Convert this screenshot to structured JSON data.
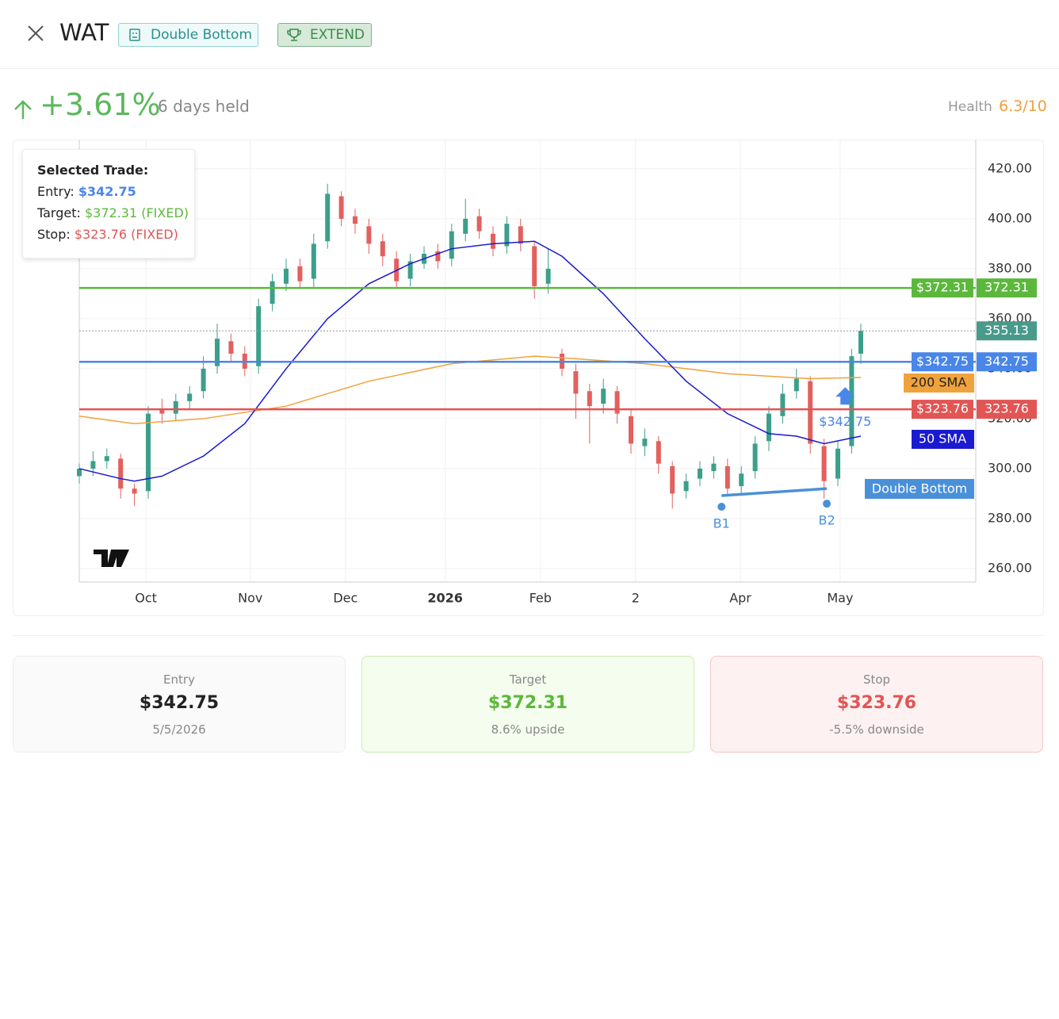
{
  "header": {
    "symbol": "WAT",
    "pattern": "Double Bottom",
    "action": "EXTEND"
  },
  "performance": {
    "change": "+3.61%",
    "held": "6 days held",
    "health_label": "Health",
    "health": "6.3/10"
  },
  "tooltip": {
    "title": "Selected Trade:",
    "entry_label": "Entry:",
    "entry": "$342.75",
    "target_label": "Target:",
    "target": "$372.31 (FIXED)",
    "stop_label": "Stop:",
    "stop": "$323.76 (FIXED)"
  },
  "chart_data": {
    "type": "candlestick",
    "xlim": [
      0,
      195
    ],
    "ylim": [
      254.6,
      431.7
    ],
    "xticks": [
      {
        "value": 14.5,
        "label": "Oct"
      },
      {
        "value": 37.2,
        "label": "Nov"
      },
      {
        "value": 57.9,
        "label": "Dec"
      },
      {
        "value": 79.6,
        "label": "2026"
      },
      {
        "value": 100.3,
        "label": "Feb"
      },
      {
        "value": 121,
        "label": "2"
      },
      {
        "value": 143.8,
        "label": "Apr"
      },
      {
        "value": 165.5,
        "label": "May"
      }
    ],
    "yticks": [
      {
        "value": 260,
        "label": "260.00"
      },
      {
        "value": 280,
        "label": "280.00"
      },
      {
        "value": 300,
        "label": "300.00"
      },
      {
        "value": 320,
        "label": "320.00"
      },
      {
        "value": 340,
        "label": "340.00"
      },
      {
        "value": 360,
        "label": "360.00"
      },
      {
        "value": 380,
        "label": "380.00"
      },
      {
        "value": 400,
        "label": "400.00"
      },
      {
        "value": 420,
        "label": "420.00"
      }
    ],
    "grid": true,
    "up_color": "#3c9f8a",
    "down_color": "#e2605e",
    "x": [
      0,
      3,
      6,
      9,
      12,
      15,
      18,
      21,
      24,
      27,
      30,
      33,
      36,
      39,
      42,
      45,
      48,
      51,
      54,
      57,
      60,
      63,
      66,
      69,
      72,
      75,
      78,
      81,
      84,
      87,
      90,
      93,
      96,
      99,
      102,
      105,
      108,
      111,
      114,
      117,
      120,
      123,
      126,
      129,
      132,
      135,
      138,
      141,
      144,
      147,
      150,
      153,
      156,
      159,
      162,
      165,
      168,
      170
    ],
    "open": [
      297,
      300,
      303,
      304,
      292,
      291,
      324,
      322,
      327,
      331,
      341,
      351,
      346,
      341,
      366,
      374,
      381,
      376,
      391,
      409,
      401,
      397,
      391,
      384,
      376,
      382,
      387,
      384,
      394,
      401,
      394,
      389,
      397,
      389,
      374,
      346,
      339,
      331,
      326,
      331,
      321,
      309,
      311,
      301,
      291,
      296,
      299,
      301,
      293,
      299,
      311,
      321,
      331,
      335,
      309,
      296,
      309,
      346
    ],
    "high": [
      302,
      307,
      308,
      306,
      294,
      325,
      328,
      330,
      333,
      345,
      358,
      354,
      349,
      368,
      378,
      384,
      384,
      394,
      414,
      411,
      404,
      400,
      394,
      387,
      386,
      389,
      390,
      398,
      408,
      404,
      397,
      401,
      400,
      391,
      388,
      348,
      342,
      334,
      336,
      333,
      324,
      316,
      313,
      303,
      298,
      303,
      305,
      304,
      301,
      313,
      325,
      334,
      340,
      337,
      312,
      311,
      348,
      358
    ],
    "low": [
      294,
      297,
      300,
      288,
      285,
      288,
      318,
      319,
      324,
      328,
      338,
      343,
      337,
      338,
      363,
      371,
      372,
      372,
      388,
      397,
      394,
      386,
      381,
      372,
      373,
      380,
      380,
      381,
      391,
      392,
      385,
      386,
      387,
      368,
      370,
      337,
      320,
      310,
      322,
      318,
      306,
      305,
      298,
      284,
      288,
      293,
      296,
      289,
      290,
      296,
      307,
      318,
      328,
      306,
      288,
      293,
      306,
      342
    ],
    "close": [
      300,
      303,
      305,
      292,
      290,
      322,
      322,
      327,
      330,
      340,
      352,
      346,
      340,
      365,
      375,
      380,
      375,
      390,
      410,
      400,
      398,
      390,
      385,
      375,
      383,
      386,
      383,
      395,
      400,
      395,
      388,
      398,
      390,
      373,
      380,
      340,
      330,
      325,
      332,
      322,
      310,
      312,
      302,
      290,
      295,
      300,
      302,
      292,
      298,
      310,
      322,
      330,
      336,
      310,
      295,
      308,
      345,
      355.13
    ],
    "series": [
      {
        "name": "200 SMA",
        "color": "#f0a23c",
        "x": [
          0,
          12,
          27,
          45,
          63,
          81,
          99,
          108,
          123,
          141,
          159,
          170
        ],
        "values": [
          321,
          318,
          320,
          325,
          335,
          342,
          345,
          344,
          342,
          338,
          336,
          336.5
        ]
      },
      {
        "name": "50 SMA",
        "color": "#1a1ad0",
        "x": [
          0,
          9,
          12,
          18,
          27,
          36,
          45,
          54,
          63,
          72,
          81,
          90,
          99,
          105,
          114,
          123,
          132,
          141,
          150,
          156,
          162,
          170
        ],
        "values": [
          300,
          296,
          295,
          297,
          305,
          318,
          340,
          360,
          374,
          382,
          388,
          390,
          391,
          385,
          370,
          352,
          335,
          322,
          314,
          313,
          310,
          313
        ]
      }
    ],
    "levels": [
      {
        "value": 372.31,
        "label": "$372.31",
        "color": "#5cb83c"
      },
      {
        "value": 342.75,
        "label": "$342.75",
        "color": "#4a86e8"
      },
      {
        "value": 323.76,
        "label": "$323.76",
        "color": "#e25555"
      },
      {
        "value": 355.13,
        "color": "#4a9a8c",
        "style": "dotted"
      }
    ],
    "pattern": {
      "name": "Double Bottom",
      "color": "#4a90d9",
      "points": [
        {
          "label": "B1",
          "x": 139.7,
          "value": 289.2
        },
        {
          "label": "B2",
          "x": 162.6,
          "value": 292
        }
      ]
    },
    "entry_marker": {
      "x": 166.6,
      "value": 342.75,
      "label": "$342.75",
      "color": "#4a86e8"
    }
  },
  "cards": [
    {
      "label": "Entry",
      "value": "$342.75",
      "sub": "5/5/2026"
    },
    {
      "label": "Target",
      "value": "$372.31",
      "sub": "8.6% upside"
    },
    {
      "label": "Stop",
      "value": "$323.76",
      "sub": "-5.5% downside"
    }
  ]
}
